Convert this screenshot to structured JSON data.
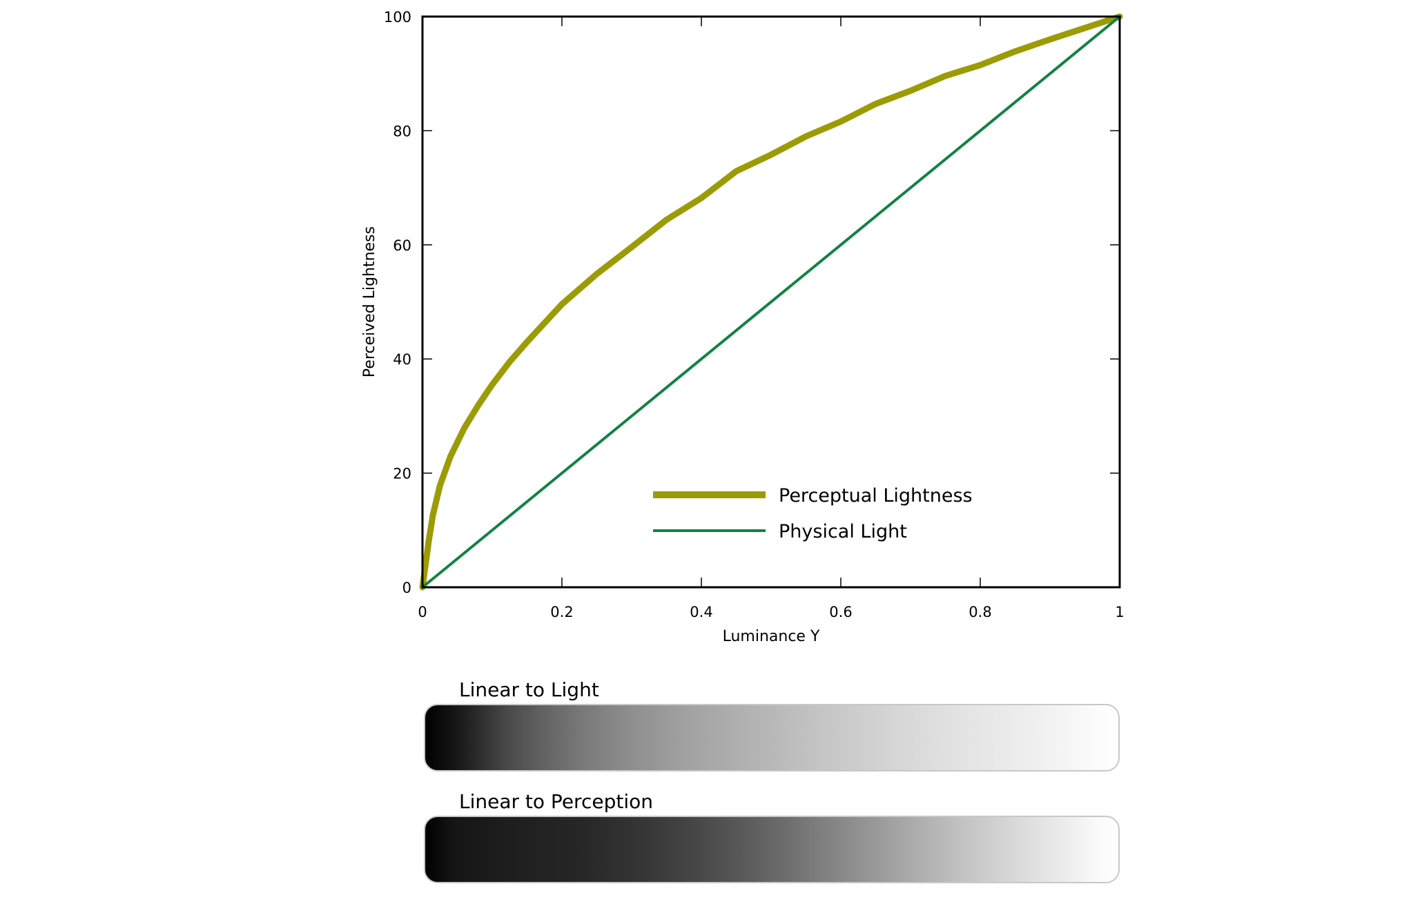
{
  "chart_data": {
    "type": "line",
    "title": "",
    "xlabel": "Luminance Y",
    "ylabel": "Perceived Lightness",
    "xlim": [
      0,
      1
    ],
    "ylim": [
      0,
      100
    ],
    "xticks": [
      "0",
      "0.2",
      "0.4",
      "0.6",
      "0.8",
      "1"
    ],
    "yticks": [
      "0",
      "20",
      "40",
      "60",
      "80",
      "100"
    ],
    "grid": false,
    "legend_position": "bottom-right",
    "series": [
      {
        "name": "Perceptual Lightness",
        "color": "#9b9b05",
        "x": [
          0,
          0.002,
          0.005,
          0.008856,
          0.015,
          0.025,
          0.04,
          0.06,
          0.08,
          0.1,
          0.125,
          0.15,
          0.2,
          0.25,
          0.3,
          0.35,
          0.4,
          0.45,
          0.5,
          0.55,
          0.6,
          0.65,
          0.7,
          0.75,
          0.8,
          0.85,
          0.9,
          0.95,
          1
        ],
        "y": [
          0,
          1.8,
          4.5,
          8.0,
          12.7,
          17.8,
          22.9,
          27.9,
          31.9,
          35.5,
          39.5,
          43.0,
          49.6,
          54.9,
          59.6,
          64.4,
          68.2,
          72.9,
          75.8,
          79.0,
          81.6,
          84.7,
          87.0,
          89.6,
          91.5,
          93.9,
          96.0,
          98.0,
          100
        ]
      },
      {
        "name": "Physical Light",
        "color": "#128245",
        "x": [
          0,
          1
        ],
        "y": [
          0,
          100
        ]
      }
    ]
  },
  "bars": [
    {
      "title": "Linear to Light",
      "gradient": "linear-gradient(to right, #000000 0%, #1a1a1a 5%, #2e2e2e 8%, #4a4a4a 12%, #626262 17%, #7a7a7a 23%, #8f8f8f 30%, #a2a2a2 38%, #b4b4b4 48%, #c6c6c6 58%, #d6d6d6 68%, #e4e4e4 78%, #efefef 88%, #fafafa 96%, #ffffff 100%)"
    },
    {
      "title": "Linear to Perception",
      "gradient": "linear-gradient(to right, #000000 0%, #151515 4%, #1e1e1e 12%, #262626 22%, #333333 30%, #444444 38%, #5a5a5a 46%, #747474 54%, #8f8f8f 62%, #aaaaaa 70%, #c4c4c4 78%, #dbdbdb 86%, #eeeeee 93%, #fafafa 97%, #ffffff 100%)"
    }
  ]
}
